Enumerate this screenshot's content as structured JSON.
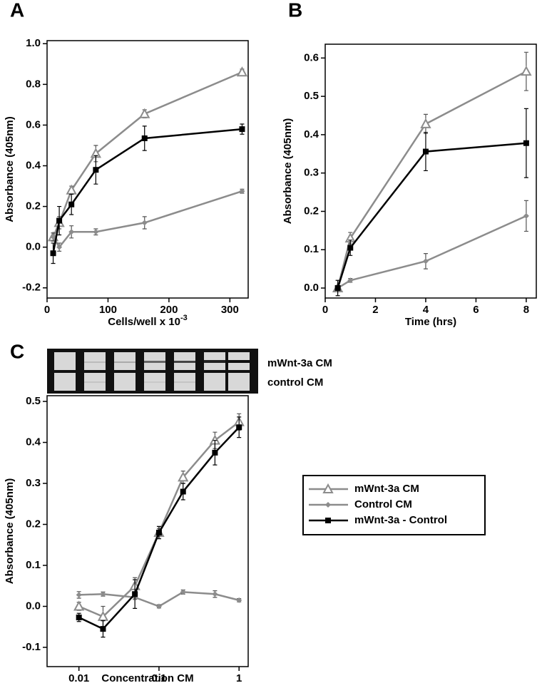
{
  "chart_data": [
    {
      "type": "line",
      "panel": "A",
      "ylabel": "Absorbance (405nm)",
      "xlabel": "Cells/well x 10",
      "xlabel_exponent": "-3",
      "x": [
        10,
        20,
        40,
        80,
        160,
        320
      ],
      "xlim": [
        0,
        330
      ],
      "xticks": [
        0,
        100,
        200,
        300
      ],
      "ylim": [
        -0.25,
        1.015
      ],
      "yticks": [
        {
          "value": 1,
          "label": "1.0"
        },
        0.8,
        0.6,
        0.4,
        0.2,
        {
          "value": 0,
          "label": "0.0"
        },
        -0.2
      ],
      "series": [
        {
          "color": "#8c8c8c",
          "marker": "triangle",
          "values": [
            0.05,
            0.12,
            0.28,
            0.46,
            0.655,
            0.86
          ],
          "errors": [
            0.02,
            0.03,
            0.02,
            0.04,
            0.02,
            0.015
          ]
        },
        {
          "color": "#8c8c8c",
          "marker": "diamond",
          "values": [
            0.05,
            0.0,
            0.075,
            0.075,
            0.12,
            0.275
          ],
          "errors": [
            0.02,
            0.02,
            0.03,
            0.015,
            0.03,
            0.01
          ]
        },
        {
          "color": "#000000",
          "marker": "square",
          "values": [
            -0.03,
            0.13,
            0.21,
            0.38,
            0.535,
            0.58
          ],
          "errors": [
            0.05,
            0.07,
            0.05,
            0.07,
            0.06,
            0.025
          ]
        }
      ]
    },
    {
      "type": "line",
      "panel": "B",
      "ylabel": "Absorbance (405nm)",
      "xlabel": "Time (hrs)",
      "x": [
        0.5,
        1,
        4,
        8
      ],
      "xlim": [
        0,
        8.4
      ],
      "xticks": [
        0,
        2,
        4,
        6,
        8
      ],
      "ylim": [
        -0.026,
        0.636
      ],
      "yticks": [
        0.6,
        0.5,
        0.4,
        0.3,
        0.2,
        0.1,
        {
          "value": 0,
          "label": "0.0"
        }
      ],
      "series": [
        {
          "color": "#8c8c8c",
          "marker": "triangle",
          "values": [
            0.0,
            0.13,
            0.428,
            0.565
          ],
          "errors": [
            0.005,
            0.015,
            0.025,
            0.05
          ]
        },
        {
          "color": "#8c8c8c",
          "marker": "diamond",
          "values": [
            0.0,
            0.02,
            0.07,
            0.188
          ],
          "errors": [
            0.005,
            0.005,
            0.02,
            0.04
          ]
        },
        {
          "color": "#000000",
          "marker": "square",
          "values": [
            0.0,
            0.105,
            0.356,
            0.378
          ],
          "errors": [
            0.02,
            0.02,
            0.05,
            0.09
          ]
        }
      ]
    },
    {
      "type": "line",
      "panel": "C",
      "ylabel": "Absorbance (405nm)",
      "xlabel": "Concentration CM",
      "blot_labels": [
        "mWnt-3a CM",
        "control CM"
      ],
      "x": [
        0.01,
        0.02,
        0.05,
        0.1,
        0.2,
        0.5,
        1
      ],
      "log_x": true,
      "xlim": [
        0.004,
        1.3
      ],
      "xticks": [
        0.01,
        0.1,
        1
      ],
      "ylim": [
        -0.147,
        0.514
      ],
      "yticks": [
        0.5,
        0.4,
        0.3,
        0.2,
        0.1,
        {
          "value": 0,
          "label": "0.0"
        },
        -0.1
      ],
      "legend": "right",
      "series": [
        {
          "name": "mWnt-3a CM",
          "color": "#8c8c8c",
          "marker": "triangle",
          "values": [
            0.0,
            -0.025,
            0.05,
            0.18,
            0.315,
            0.405,
            0.45
          ],
          "errors": [
            0.01,
            0.025,
            0.02,
            0.01,
            0.015,
            0.02,
            0.02
          ]
        },
        {
          "name": "Control CM",
          "color": "#8c8c8c",
          "marker": "diamond",
          "values": [
            0.028,
            0.03,
            0.022,
            0.0,
            0.035,
            0.03,
            0.015
          ],
          "errors": [
            0.008,
            0.005,
            0.005,
            0.004,
            0.005,
            0.008,
            0.004
          ]
        },
        {
          "name": "mWnt-3a - Control",
          "color": "#000000",
          "marker": "square",
          "values": [
            -0.027,
            -0.055,
            0.03,
            0.18,
            0.28,
            0.375,
            0.437
          ],
          "errors": [
            0.01,
            0.02,
            0.035,
            0.015,
            0.02,
            0.03,
            0.025
          ]
        }
      ]
    }
  ]
}
